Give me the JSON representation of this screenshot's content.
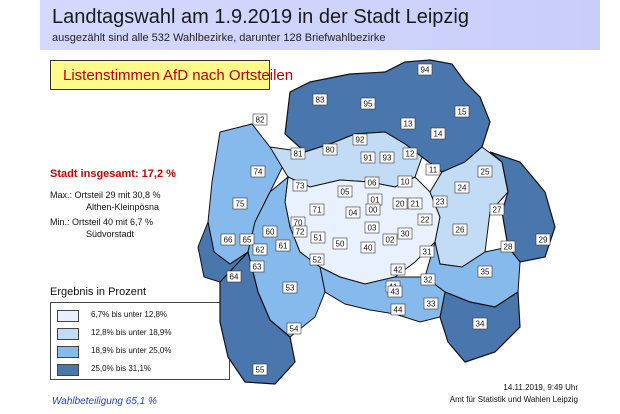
{
  "header": {
    "title": "Landtagswahl am 1.9.2019 in der Stadt Leipzig",
    "subtitle": "ausgezählt sind alle 532 Wahlbezirke, darunter 128 Briefwahlbezirke"
  },
  "banner": {
    "label": "Listenstimmen AfD nach Ortsteilen"
  },
  "summary": {
    "total": "Stadt insgesamt: 17,2 %",
    "max_line1": "Max.: Ortsteil 29 mit 30,8 %",
    "max_line2": "Althen-Kleinpösna",
    "min_line1": "Min.: Ortsteil 40 mit 6,7 %",
    "min_line2": "Südvorstadt"
  },
  "legend": {
    "title": "Ergebnis in Prozent",
    "items": [
      {
        "label": "6,7% bis unter 12,8%",
        "color": "#e8f1fd"
      },
      {
        "label": "12,8% bis unter 18,9%",
        "color": "#c2dcf6"
      },
      {
        "label": "18,9% bis unter 25,0%",
        "color": "#86b9ec"
      },
      {
        "label": "25,0% bis 31,1%",
        "color": "#4a76ae"
      }
    ]
  },
  "turnout": "Wahlbeteiligung 65,1 %",
  "footer": {
    "timestamp": "14.11.2019, 9:49 Uhr",
    "office": "Amt für Statistik und Wahlen Leipzig"
  },
  "map": {
    "district_labels": [
      "94",
      "83",
      "95",
      "82",
      "13",
      "15",
      "14",
      "81",
      "80",
      "92",
      "91",
      "93",
      "12",
      "11",
      "10",
      "74",
      "73",
      "05",
      "06",
      "25",
      "24",
      "01",
      "20",
      "21",
      "23",
      "75",
      "71",
      "04",
      "00",
      "27",
      "70",
      "72",
      "03",
      "22",
      "66",
      "60",
      "61",
      "51",
      "50",
      "30",
      "02",
      "26",
      "28",
      "65",
      "62",
      "52",
      "40",
      "31",
      "29",
      "63",
      "64",
      "42",
      "32",
      "53",
      "41",
      "35",
      "43",
      "44",
      "33",
      "54",
      "34",
      "55"
    ]
  }
}
